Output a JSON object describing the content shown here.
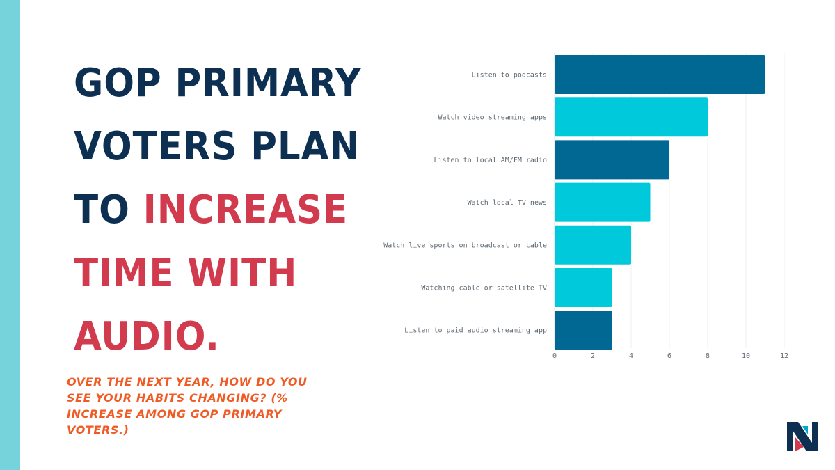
{
  "headline": {
    "line1": "GOP PRIMARY",
    "line2": "VOTERS PLAN",
    "line3_a": "TO ",
    "line3_b": "INCREASE",
    "line4": "TIME WITH",
    "line5": "AUDIO."
  },
  "subtitle": "OVER THE NEXT YEAR, HOW DO YOU SEE YOUR HABITS CHANGING? (% INCREASE AMONG GOP PRIMARY VOTERS.)",
  "colors": {
    "navy": "#0c2f52",
    "accent_red": "#d23b4e",
    "subtitle_orange": "#f05a24",
    "side_bar": "#76d3dc",
    "bar_dark": "#006893",
    "bar_light": "#00c9db"
  },
  "chart_data": {
    "type": "bar",
    "orientation": "horizontal",
    "categories": [
      "Listen to podcasts",
      "Watch video streaming apps",
      "Listen to local AM/FM radio",
      "Watch local TV news",
      "Watch live sports on broadcast or cable",
      "Watching cable or satellite TV",
      "Listen to paid audio streaming app"
    ],
    "values": [
      11,
      8,
      6,
      5,
      4,
      3,
      3
    ],
    "bar_colors": [
      "#006893",
      "#00c9db",
      "#006893",
      "#00c9db",
      "#00c9db",
      "#00c9db",
      "#006893"
    ],
    "xlim": [
      0,
      12
    ],
    "xticks": [
      0,
      2,
      4,
      6,
      8,
      10,
      12
    ],
    "grid": true,
    "title": "",
    "xlabel": "",
    "ylabel": ""
  },
  "logo": {
    "icon": "n-monogram-logo"
  }
}
